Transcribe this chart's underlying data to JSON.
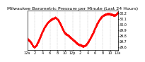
{
  "title": "Milwaukee Barometric Pressure per Minute (Last 24 Hours)",
  "bg_color": "#ffffff",
  "plot_bg_color": "#ffffff",
  "line_color": "#ff0000",
  "grid_color": "#b0b0b0",
  "text_color": "#000000",
  "ylim": [
    29.55,
    30.25
  ],
  "yticks": [
    29.6,
    29.7,
    29.8,
    29.9,
    30.0,
    30.1,
    30.2
  ],
  "xlim": [
    0,
    1440
  ],
  "pressure_shape": [
    [
      0,
      29.75
    ],
    [
      30,
      29.72
    ],
    [
      60,
      29.68
    ],
    [
      90,
      29.62
    ],
    [
      110,
      29.6
    ],
    [
      130,
      29.62
    ],
    [
      150,
      29.65
    ],
    [
      180,
      29.72
    ],
    [
      210,
      29.8
    ],
    [
      240,
      29.88
    ],
    [
      270,
      29.95
    ],
    [
      300,
      30.0
    ],
    [
      330,
      30.05
    ],
    [
      360,
      30.08
    ],
    [
      390,
      30.1
    ],
    [
      420,
      30.12
    ],
    [
      450,
      30.13
    ],
    [
      480,
      30.1
    ],
    [
      510,
      30.05
    ],
    [
      540,
      29.98
    ],
    [
      560,
      29.93
    ],
    [
      580,
      29.88
    ],
    [
      600,
      29.85
    ],
    [
      620,
      29.83
    ],
    [
      640,
      29.82
    ],
    [
      660,
      29.8
    ],
    [
      680,
      29.78
    ],
    [
      700,
      29.76
    ],
    [
      720,
      29.74
    ],
    [
      740,
      29.72
    ],
    [
      760,
      29.7
    ],
    [
      780,
      29.68
    ],
    [
      800,
      29.66
    ],
    [
      820,
      29.65
    ],
    [
      840,
      29.64
    ],
    [
      860,
      29.63
    ],
    [
      880,
      29.62
    ],
    [
      900,
      29.62
    ],
    [
      920,
      29.63
    ],
    [
      940,
      29.65
    ],
    [
      960,
      29.68
    ],
    [
      980,
      29.72
    ],
    [
      1000,
      29.76
    ],
    [
      1020,
      29.8
    ],
    [
      1050,
      29.87
    ],
    [
      1080,
      29.95
    ],
    [
      1110,
      30.02
    ],
    [
      1140,
      30.08
    ],
    [
      1170,
      30.13
    ],
    [
      1200,
      30.16
    ],
    [
      1230,
      30.18
    ],
    [
      1260,
      30.19
    ],
    [
      1290,
      30.2
    ],
    [
      1320,
      30.19
    ],
    [
      1350,
      30.18
    ],
    [
      1380,
      30.17
    ],
    [
      1410,
      30.18
    ],
    [
      1440,
      30.22
    ]
  ],
  "xtick_positions": [
    0,
    120,
    240,
    360,
    480,
    600,
    720,
    840,
    960,
    1080,
    1200,
    1320,
    1440
  ],
  "xtick_labels": [
    "12a",
    "2",
    "4",
    "6",
    "8",
    "10",
    "12p",
    "2",
    "4",
    "6",
    "8",
    "10",
    "12a"
  ],
  "title_fontsize": 4.5,
  "tick_fontsize": 3.5,
  "marker_size": 0.5,
  "linewidth": 0.6
}
